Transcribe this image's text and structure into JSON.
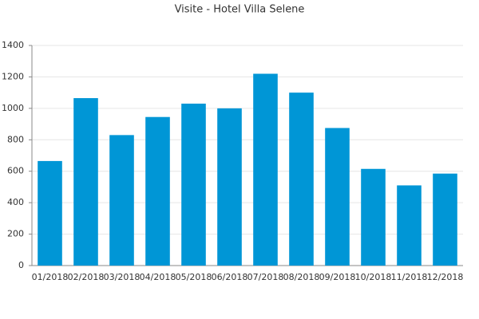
{
  "chart_data": {
    "type": "bar",
    "title": "Visite - Hotel Villa Selene",
    "categories": [
      "01/2018",
      "02/2018",
      "03/2018",
      "04/2018",
      "05/2018",
      "06/2018",
      "07/2018",
      "08/2018",
      "09/2018",
      "10/2018",
      "11/2018",
      "12/2018"
    ],
    "values": [
      665,
      1065,
      830,
      945,
      1030,
      1000,
      1220,
      1100,
      875,
      615,
      510,
      585
    ],
    "color": "#0096d6",
    "ylim": [
      0,
      1400
    ],
    "yticks": [
      0,
      200,
      400,
      600,
      800,
      1000,
      1200,
      1400
    ],
    "grid": true
  }
}
